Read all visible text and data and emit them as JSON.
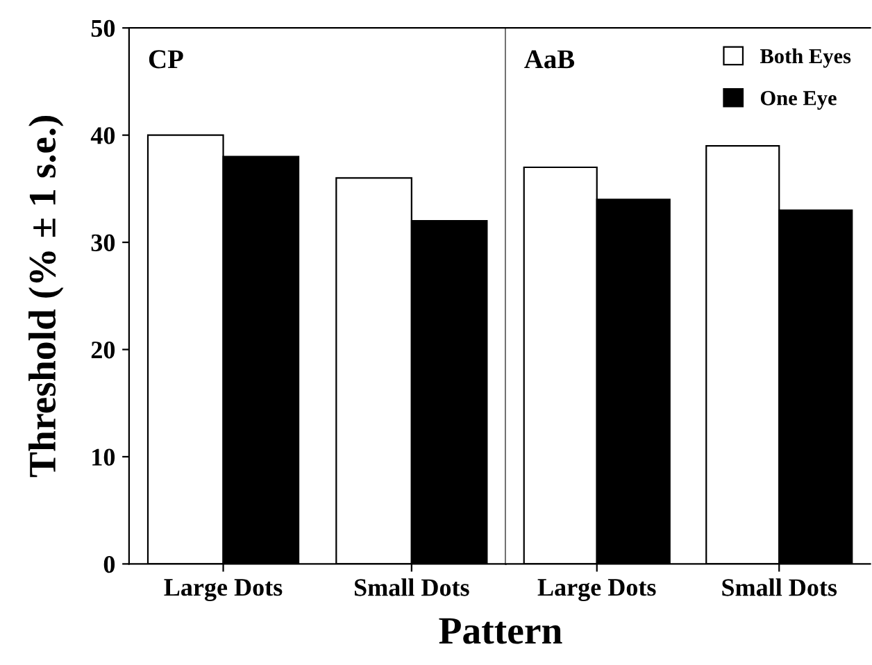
{
  "chart_data": [
    {
      "type": "bar",
      "title": "CP",
      "xlabel": "Pattern",
      "ylabel": "Threshold (% ± 1 s.e.)",
      "categories": [
        "Large Dots",
        "Small Dots"
      ],
      "series": [
        {
          "color": "#ffffff",
          "values": [
            40,
            36
          ]
        },
        {
          "color": "#000000",
          "values": [
            38,
            32
          ]
        }
      ],
      "ylim": [
        0,
        50
      ],
      "yticks": [
        0,
        10,
        20,
        30,
        40,
        50
      ]
    },
    {
      "type": "bar",
      "title": "AaB",
      "categories": [
        "Large Dots",
        "Small Dots"
      ],
      "series": [
        {
          "name": "Both Eyes",
          "color": "#ffffff",
          "values": [
            37,
            39
          ]
        },
        {
          "name": "One Eye",
          "color": "#000000",
          "values": [
            34,
            33
          ]
        }
      ],
      "ylim": [
        0,
        50
      ],
      "yticks": [
        0,
        10,
        20,
        30,
        40,
        50
      ],
      "tick_labels": "x",
      "legend": "top right"
    }
  ]
}
